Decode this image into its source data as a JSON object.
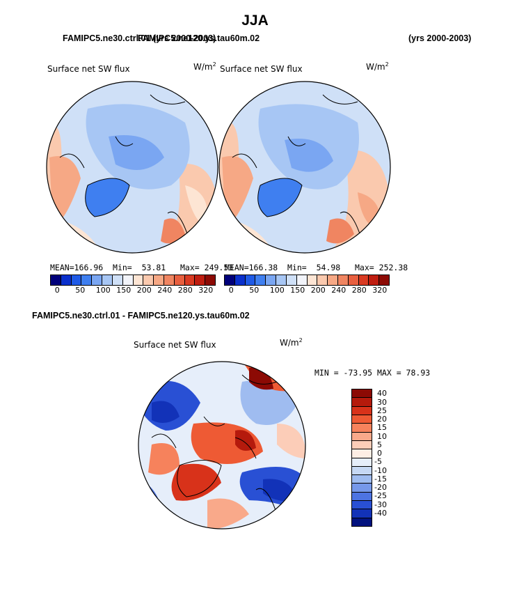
{
  "chart_data": {
    "type": "heatmap",
    "title": "JJA",
    "panels": [
      {
        "case_label": "FAMIPC5.ne30.ctrl.01 (yrs 2000-2003)",
        "title": "Surface net SW flux",
        "units": "W/m",
        "units_sup": "2",
        "stats": {
          "mean_label": "MEAN=",
          "mean": "166.96",
          "min_label": "Min=",
          "min": "53.81",
          "max_label": "Max=",
          "max": "249.53"
        },
        "colorbar_ticks": [
          "0",
          "50",
          "100",
          "150",
          "200",
          "240",
          "280",
          "320"
        ]
      },
      {
        "case_label": "FAMIPC5.ne120.ys.tau60m.02",
        "years_label": "(yrs 2000-2003)",
        "title": "Surface net SW flux",
        "units": "W/m",
        "units_sup": "2",
        "stats": {
          "mean_label": "MEAN=",
          "mean": "166.38",
          "min_label": "Min=",
          "min": "54.98",
          "max_label": "Max=",
          "max": "252.38"
        },
        "colorbar_ticks": [
          "0",
          "50",
          "100",
          "150",
          "200",
          "240",
          "280",
          "320"
        ]
      },
      {
        "case_label": "FAMIPC5.ne30.ctrl.01 - FAMIPC5.ne120.ys.tau60m.02",
        "title": "Surface net SW flux",
        "units": "W/m",
        "units_sup": "2",
        "stats_text": "MIN = -73.95 MAX =  78.93",
        "colorbar_ticks": [
          "40",
          "30",
          "25",
          "20",
          "15",
          "10",
          "5",
          "0",
          "-5",
          "-10",
          "-15",
          "-20",
          "-25",
          "-30",
          "-40"
        ]
      }
    ],
    "colors_abs": [
      "#00007a",
      "#0a30cc",
      "#1f5ae6",
      "#3f7ff0",
      "#7aa6f2",
      "#a7c6f4",
      "#cfe0f7",
      "#f2f4fa",
      "#fde5d4",
      "#fac9ae",
      "#f6a885",
      "#f08561",
      "#e85f3f",
      "#d93a22",
      "#bf1d10",
      "#8c0a04"
    ],
    "colors_diff": [
      "#8c0a04",
      "#b51a0c",
      "#d8321a",
      "#ee5a34",
      "#f6825c",
      "#f9a98a",
      "#fccdb8",
      "#fdeee4",
      "#e6eefa",
      "#c6d8f4",
      "#9fbcf0",
      "#7698ea",
      "#4d74e2",
      "#2950d4",
      "#1232b8",
      "#02127e"
    ]
  }
}
